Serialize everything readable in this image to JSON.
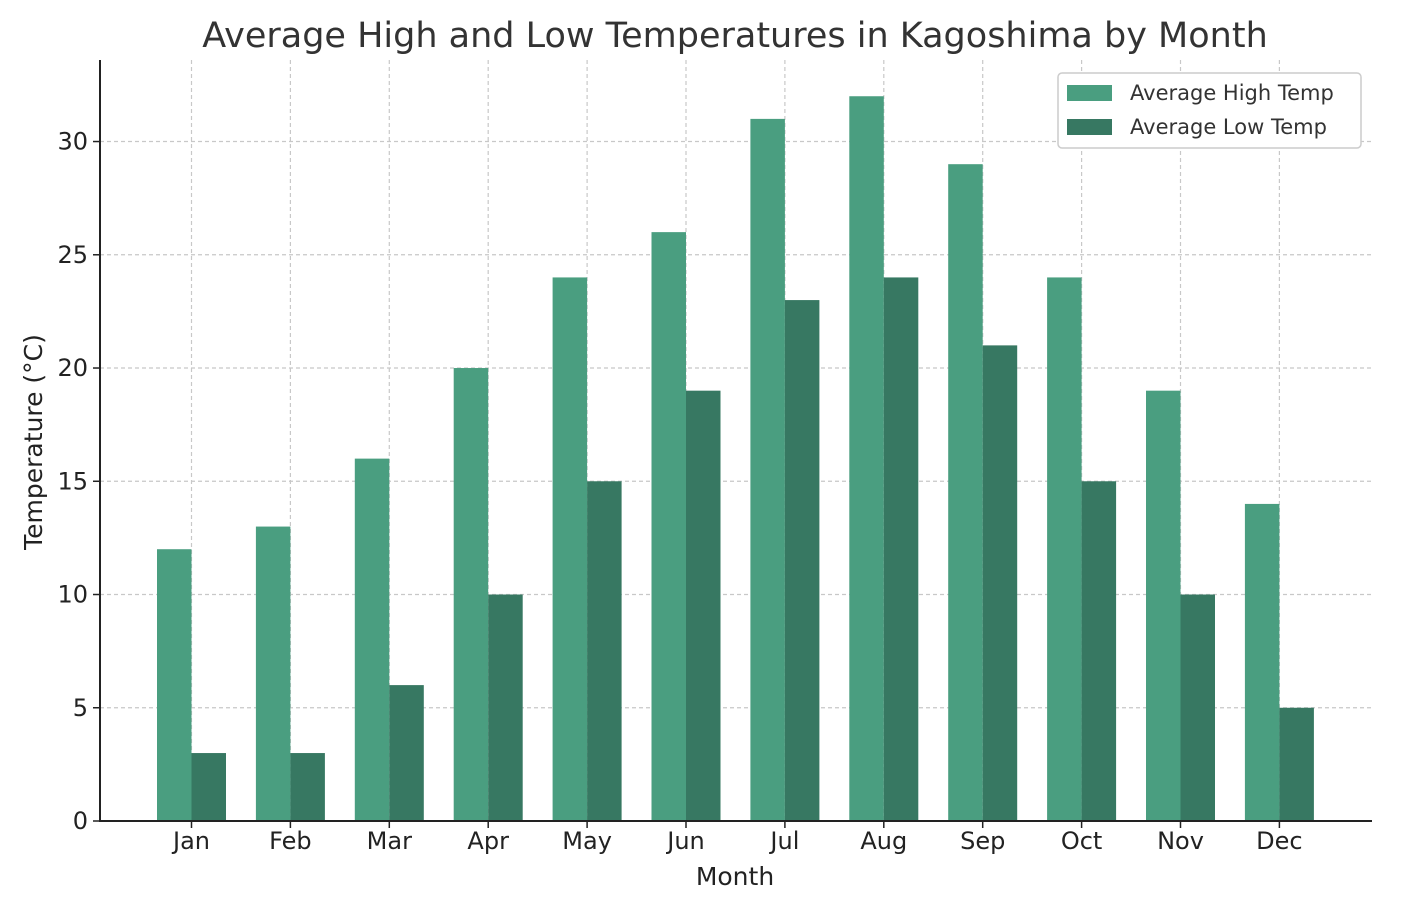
{
  "chart_data": {
    "type": "bar",
    "title": "Average High and Low Temperatures in Kagoshima by Month",
    "xlabel": "Month",
    "ylabel": "Temperature (°C)",
    "categories": [
      "Jan",
      "Feb",
      "Mar",
      "Apr",
      "May",
      "Jun",
      "Jul",
      "Aug",
      "Sep",
      "Oct",
      "Nov",
      "Dec"
    ],
    "series": [
      {
        "name": "Average High Temp",
        "color": "#4a9e80",
        "values": [
          12,
          13,
          16,
          20,
          24,
          26,
          31,
          32,
          29,
          24,
          19,
          14
        ]
      },
      {
        "name": "Average Low Temp",
        "color": "#377862",
        "values": [
          3,
          3,
          6,
          10,
          15,
          19,
          23,
          24,
          21,
          15,
          10,
          5
        ]
      }
    ],
    "yticks": [
      0,
      5,
      10,
      15,
      20,
      25,
      30
    ],
    "ylim": [
      0,
      33.6
    ],
    "grid": true,
    "legend_position": "top-right"
  }
}
